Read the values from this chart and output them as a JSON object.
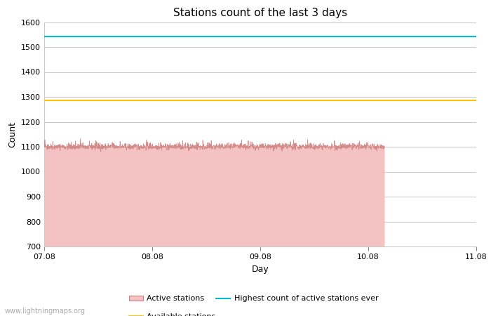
{
  "title": "Stations count of the last 3 days",
  "xlabel": "Day",
  "ylabel": "Count",
  "ylim": [
    700,
    1600
  ],
  "yticks": [
    700,
    800,
    900,
    1000,
    1100,
    1200,
    1300,
    1400,
    1500,
    1600
  ],
  "x_start": 0,
  "x_end": 4,
  "x_tick_positions": [
    0,
    1,
    2,
    3,
    4
  ],
  "x_tick_labels": [
    "07.08",
    "08.08",
    "09.08",
    "10.08",
    "11.08"
  ],
  "active_stations_value": 1100,
  "active_stations_color": "#f4c2c2",
  "active_stations_edge_color": "#d08080",
  "highest_ever_value": 1543,
  "highest_ever_color": "#00bcd4",
  "available_stations_value": 1285,
  "available_stations_color": "#FFC107",
  "drop_x_start": 3.15,
  "background_color": "#ffffff",
  "grid_color": "#cccccc",
  "watermark": "www.lightningmaps.org",
  "title_fontsize": 11,
  "axis_fontsize": 9,
  "tick_fontsize": 8
}
